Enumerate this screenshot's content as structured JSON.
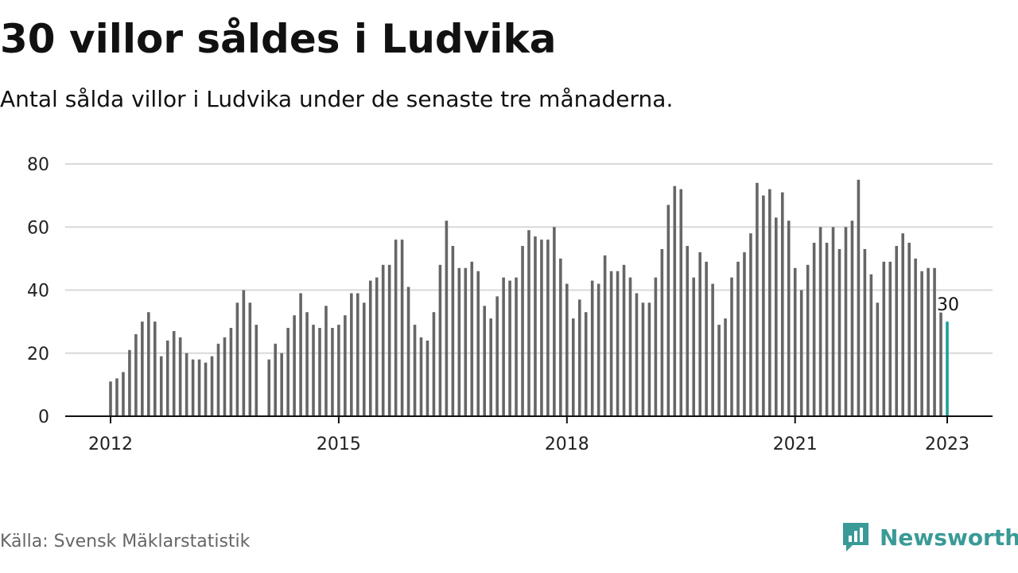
{
  "header": {
    "title": "30 villor såldes i Ludvika",
    "subtitle": "Antal sålda villor i Ludvika under de senaste tre månaderna."
  },
  "footer": {
    "source": "Källa: Svensk Mäklarstatistik",
    "brand": "Newsworthy",
    "brand_icon": "bar-chart-logo-icon",
    "brand_color": "#3a9a97"
  },
  "chart_data": {
    "type": "bar",
    "x_start": "2012-01",
    "x_end": "2023-01",
    "x_interval": "month",
    "x_tick_labels": [
      "2012",
      "2015",
      "2018",
      "2021",
      "2023"
    ],
    "y_ticks": [
      0,
      20,
      40,
      60,
      80
    ],
    "ylim": [
      0,
      80
    ],
    "grid": true,
    "bar_color": "#666666",
    "highlight_color": "#1aa19c",
    "highlight_label": "30",
    "values": [
      11,
      12,
      14,
      21,
      26,
      30,
      33,
      30,
      19,
      24,
      27,
      25,
      20,
      18,
      18,
      17,
      19,
      23,
      25,
      28,
      36,
      40,
      36,
      29,
      null,
      18,
      23,
      20,
      28,
      32,
      39,
      33,
      29,
      28,
      35,
      28,
      29,
      32,
      39,
      39,
      36,
      43,
      44,
      48,
      48,
      56,
      56,
      41,
      29,
      25,
      24,
      33,
      48,
      62,
      54,
      47,
      47,
      49,
      46,
      35,
      31,
      38,
      44,
      43,
      44,
      54,
      59,
      57,
      56,
      56,
      60,
      50,
      42,
      31,
      37,
      33,
      43,
      42,
      51,
      46,
      46,
      48,
      44,
      39,
      36,
      36,
      44,
      53,
      67,
      73,
      72,
      54,
      44,
      52,
      49,
      42,
      29,
      31,
      44,
      49,
      52,
      58,
      74,
      70,
      72,
      63,
      71,
      62,
      47,
      40,
      48,
      55,
      60,
      55,
      60,
      53,
      60,
      62,
      75,
      53,
      45,
      36,
      49,
      49,
      54,
      58,
      55,
      50,
      46,
      47,
      47,
      33,
      30
    ]
  }
}
